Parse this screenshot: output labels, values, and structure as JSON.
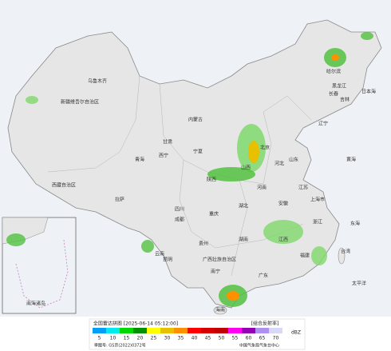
{
  "header": {
    "title": "全国雷达拼图 [2025-06-14 05:12:00]",
    "product": "[组合反射率]",
    "unit": "dBZ",
    "approval": "审图号: GS京(2022)0372号",
    "source": "中国气象局气象台中心"
  },
  "legend": {
    "values": [
      5,
      10,
      15,
      20,
      25,
      30,
      35,
      40,
      45,
      50,
      55,
      60,
      65,
      70
    ],
    "colors": [
      "#01a0f6",
      "#00ecec",
      "#00d800",
      "#019000",
      "#ffff00",
      "#e7c000",
      "#ff9000",
      "#ff0000",
      "#d60000",
      "#c00000",
      "#ff00f0",
      "#9600b4",
      "#ad90f0",
      "#d8d8f8"
    ]
  },
  "places": [
    "新疆维吾尔自治区",
    "乌鲁木齐",
    "西藏自治区",
    "青海",
    "内蒙古",
    "黑龙江",
    "吉林",
    "辽宁",
    "北京",
    "河北",
    "山西",
    "陕西",
    "宁夏",
    "甘肃",
    "四川",
    "重庆",
    "湖北",
    "河南",
    "山东",
    "江苏",
    "安徽",
    "上海市",
    "浙江",
    "江西",
    "湖南",
    "贵州",
    "云南",
    "广西壮族自治区",
    "广东",
    "福建",
    "台湾",
    "海南",
    "哈尔滨",
    "长春",
    "拉萨",
    "西宁",
    "成都",
    "昆明",
    "南宁",
    "日本海",
    "黄海",
    "东海",
    "太平洋",
    "南海诸岛"
  ]
}
